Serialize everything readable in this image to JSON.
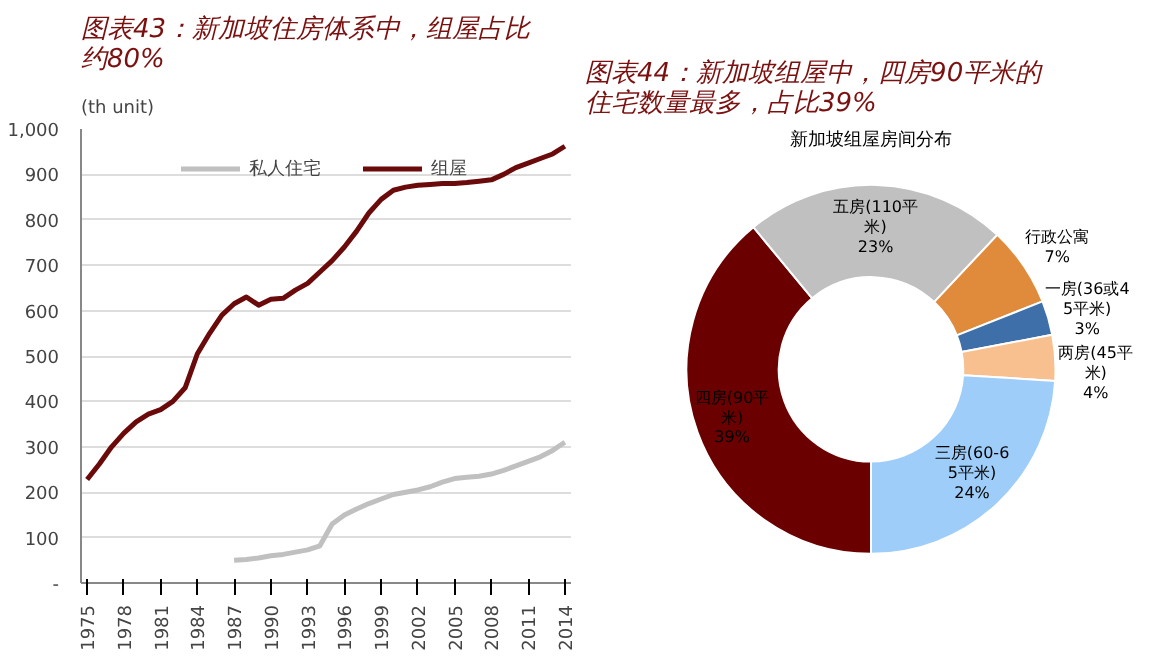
{
  "chart_data": [
    {
      "type": "line",
      "title": "图表43：新加坡住房体系中，组屋占比约80%",
      "ylabel": "(th unit)",
      "x": [
        1975,
        1976,
        1977,
        1978,
        1979,
        1980,
        1981,
        1982,
        1983,
        1984,
        1985,
        1986,
        1987,
        1988,
        1989,
        1990,
        1991,
        1992,
        1993,
        1994,
        1995,
        1996,
        1997,
        1998,
        1999,
        2000,
        2001,
        2002,
        2003,
        2004,
        2005,
        2006,
        2007,
        2008,
        2009,
        2010,
        2011,
        2012,
        2013,
        2014
      ],
      "series": [
        {
          "name": "私人住宅",
          "color": "#c0c0c0",
          "values": [
            null,
            null,
            null,
            null,
            null,
            null,
            null,
            null,
            null,
            null,
            null,
            null,
            50,
            52,
            55,
            60,
            63,
            68,
            73,
            82,
            130,
            150,
            163,
            175,
            185,
            195,
            200,
            205,
            212,
            222,
            230,
            233,
            235,
            240,
            248,
            258,
            268,
            278,
            292,
            310
          ]
        },
        {
          "name": "组屋",
          "color": "#6b0a0a",
          "values": [
            228,
            262,
            300,
            330,
            355,
            372,
            382,
            400,
            430,
            505,
            550,
            590,
            615,
            630,
            612,
            625,
            627,
            645,
            660,
            685,
            710,
            740,
            775,
            815,
            845,
            865,
            872,
            876,
            878,
            880,
            880,
            882,
            885,
            888,
            900,
            915,
            925,
            935,
            945,
            962
          ]
        }
      ],
      "xlim": [
        1974.5,
        2014.5
      ],
      "xticks": [
        1975,
        1978,
        1981,
        1984,
        1987,
        1990,
        1993,
        1996,
        1999,
        2002,
        2005,
        2008,
        2011,
        2014
      ],
      "ylim": [
        0,
        1000
      ],
      "yticks": [
        {
          "value": 0,
          "label": "-"
        },
        100,
        200,
        300,
        400,
        500,
        600,
        700,
        800,
        900,
        {
          "value": 1000,
          "label": "1,000"
        }
      ],
      "grid": "y",
      "legend": "top"
    },
    {
      "type": "donut",
      "title": "图表44：新加坡组屋中，四房90平米的住宅数量最多，占比39%",
      "subtitle": "新加坡组屋房间分布",
      "categories": [
        "四房(90平米)",
        "五房(110平米)",
        "行政公寓",
        "一房(36或45平米)",
        "两房(45平米)",
        "三房(60-65平米)"
      ],
      "values": [
        39,
        23,
        7,
        3,
        4,
        24
      ],
      "colors": [
        "#6b0000",
        "#c0c0c0",
        "#e08a3c",
        "#3e6fa8",
        "#f8c08f",
        "#9dcdf8"
      ],
      "value_labels": [
        "39%",
        "23%",
        "7%",
        "3%",
        "4%",
        "24%"
      ]
    }
  ]
}
